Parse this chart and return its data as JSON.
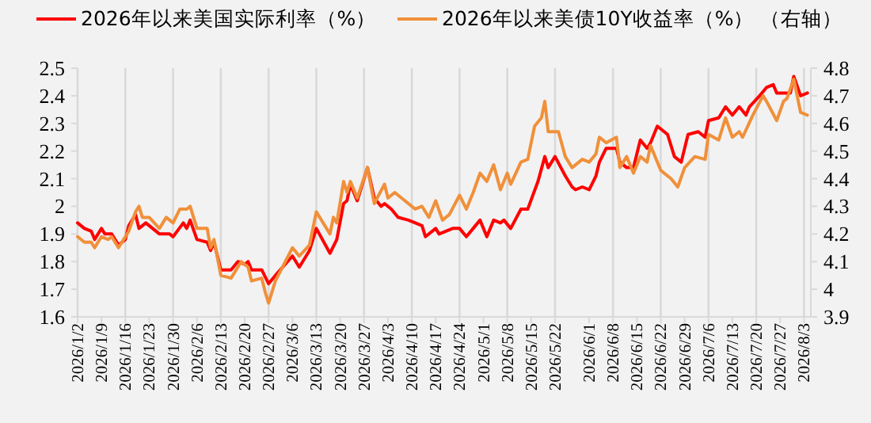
{
  "chart_data": {
    "type": "line",
    "y2label": "（右轴）",
    "legend": "top",
    "grid": "x",
    "line_style": "solid",
    "xlim": [
      "2026-01-02",
      "2026-08-05"
    ],
    "ylim": [
      1.6,
      2.5
    ],
    "yticks": [
      1.6,
      1.7,
      1.8,
      1.9,
      2,
      2.1,
      2.2,
      2.3,
      2.4,
      2.5
    ],
    "y2lim": [
      3.9,
      4.8
    ],
    "y2ticks": [
      3.9,
      4,
      4.1,
      4.2,
      4.3,
      4.4,
      4.5,
      4.6,
      4.7,
      4.8
    ],
    "xticks": [
      {
        "value": "2026-01-02",
        "label": "2026/1/2"
      },
      {
        "value": "2026-01-09",
        "label": "2026/1/9"
      },
      {
        "value": "2026-01-16",
        "label": "2026/1/16"
      },
      {
        "value": "2026-01-23",
        "label": "2026/1/23"
      },
      {
        "value": "2026-01-30",
        "label": "2026/1/30"
      },
      {
        "value": "2026-02-06",
        "label": "2026/2/6"
      },
      {
        "value": "2026-02-13",
        "label": "2026/2/13"
      },
      {
        "value": "2026-02-20",
        "label": "2026/2/20"
      },
      {
        "value": "2026-02-27",
        "label": "2026/2/27"
      },
      {
        "value": "2026-03-06",
        "label": "2026/3/6"
      },
      {
        "value": "2026-03-13",
        "label": "2026/3/13"
      },
      {
        "value": "2026-03-20",
        "label": "2026/3/20"
      },
      {
        "value": "2026-03-27",
        "label": "2026/3/27"
      },
      {
        "value": "2026-04-03",
        "label": "2026/4/3"
      },
      {
        "value": "2026-04-10",
        "label": "2026/4/10"
      },
      {
        "value": "2026-04-17",
        "label": "2026/4/17"
      },
      {
        "value": "2026-04-24",
        "label": "2026/4/24"
      },
      {
        "value": "2026-05-01",
        "label": "2026/5/1"
      },
      {
        "value": "2026-05-08",
        "label": "2026/5/8"
      },
      {
        "value": "2026-05-15",
        "label": "2026/5/15"
      },
      {
        "value": "2026-05-22",
        "label": "2026/5/22"
      },
      {
        "value": "2026-06-01",
        "label": "2026/6/1"
      },
      {
        "value": "2026-06-08",
        "label": "2026/6/8"
      },
      {
        "value": "2026-06-15",
        "label": "2026/6/15"
      },
      {
        "value": "2026-06-22",
        "label": "2026/6/22"
      },
      {
        "value": "2026-06-29",
        "label": "2026/6/29"
      },
      {
        "value": "2026-07-06",
        "label": "2026/7/6"
      },
      {
        "value": "2026-07-13",
        "label": "2026/7/13"
      },
      {
        "value": "2026-07-20",
        "label": "2026/7/20"
      },
      {
        "value": "2026-07-27",
        "label": "2026/7/27"
      },
      {
        "value": "2026-08-03",
        "label": "2026/8/3"
      }
    ],
    "series": [
      {
        "name": "2026年以来美国实际利率（%）",
        "color": "#ff0000",
        "x": [
          "2026-01-02",
          "2026-01-04",
          "2026-01-06",
          "2026-01-07",
          "2026-01-09",
          "2026-01-10",
          "2026-01-12",
          "2026-01-14",
          "2026-01-16",
          "2026-01-17",
          "2026-01-19",
          "2026-01-20",
          "2026-01-22",
          "2026-01-26",
          "2026-01-29",
          "2026-01-30",
          "2026-02-02",
          "2026-02-03",
          "2026-02-04",
          "2026-02-06",
          "2026-02-09",
          "2026-02-10",
          "2026-02-11",
          "2026-02-13",
          "2026-02-16",
          "2026-02-18",
          "2026-02-20",
          "2026-02-21",
          "2026-02-22",
          "2026-02-25",
          "2026-02-27",
          "2026-03-01",
          "2026-03-06",
          "2026-03-08",
          "2026-03-11",
          "2026-03-13",
          "2026-03-17",
          "2026-03-19",
          "2026-03-21",
          "2026-03-22",
          "2026-03-23",
          "2026-03-25",
          "2026-03-28",
          "2026-03-30",
          "2026-04-01",
          "2026-04-02",
          "2026-04-04",
          "2026-04-06",
          "2026-04-09",
          "2026-04-13",
          "2026-04-14",
          "2026-04-17",
          "2026-04-18",
          "2026-04-22",
          "2026-04-24",
          "2026-04-26",
          "2026-04-28",
          "2026-04-30",
          "2026-05-02",
          "2026-05-04",
          "2026-05-06",
          "2026-05-07",
          "2026-05-09",
          "2026-05-12",
          "2026-05-14",
          "2026-05-17",
          "2026-05-19",
          "2026-05-20",
          "2026-05-22",
          "2026-05-25",
          "2026-05-27",
          "2026-05-28",
          "2026-05-30",
          "2026-06-01",
          "2026-06-03",
          "2026-06-04",
          "2026-06-06",
          "2026-06-09",
          "2026-06-10",
          "2026-06-12",
          "2026-06-14",
          "2026-06-16",
          "2026-06-18",
          "2026-06-19",
          "2026-06-21",
          "2026-06-24",
          "2026-06-26",
          "2026-06-28",
          "2026-06-30",
          "2026-07-03",
          "2026-07-05",
          "2026-07-06",
          "2026-07-09",
          "2026-07-11",
          "2026-07-13",
          "2026-07-15",
          "2026-07-17",
          "2026-07-18",
          "2026-07-21",
          "2026-07-23",
          "2026-07-25",
          "2026-07-26",
          "2026-07-30",
          "2026-07-31",
          "2026-08-02",
          "2026-08-04"
        ],
        "values": [
          1.94,
          1.92,
          1.91,
          1.88,
          1.92,
          1.9,
          1.9,
          1.86,
          1.88,
          1.93,
          1.97,
          1.92,
          1.94,
          1.9,
          1.9,
          1.89,
          1.94,
          1.92,
          1.95,
          1.88,
          1.87,
          1.84,
          1.87,
          1.77,
          1.77,
          1.8,
          1.79,
          1.8,
          1.77,
          1.77,
          1.72,
          1.75,
          1.82,
          1.78,
          1.84,
          1.92,
          1.83,
          1.88,
          2.01,
          2.02,
          2.08,
          2.02,
          2.14,
          2.03,
          2.0,
          2.01,
          1.99,
          1.96,
          1.95,
          1.93,
          1.89,
          1.92,
          1.9,
          1.92,
          1.92,
          1.89,
          1.92,
          1.95,
          1.89,
          1.95,
          1.94,
          1.95,
          1.92,
          1.99,
          1.99,
          2.09,
          2.18,
          2.14,
          2.18,
          2.11,
          2.07,
          2.06,
          2.07,
          2.06,
          2.11,
          2.16,
          2.21,
          2.21,
          2.16,
          2.14,
          2.14,
          2.24,
          2.21,
          2.23,
          2.29,
          2.26,
          2.18,
          2.16,
          2.26,
          2.27,
          2.25,
          2.31,
          2.32,
          2.36,
          2.33,
          2.36,
          2.33,
          2.36,
          2.4,
          2.43,
          2.44,
          2.41,
          2.41,
          2.47,
          2.4,
          2.41
        ]
      },
      {
        "name": "2026年以来美债10Y收益率（%）",
        "color": "#f0903a",
        "axis": "y2",
        "x": [
          "2026-01-02",
          "2026-01-04",
          "2026-01-06",
          "2026-01-07",
          "2026-01-09",
          "2026-01-11",
          "2026-01-12",
          "2026-01-14",
          "2026-01-17",
          "2026-01-19",
          "2026-01-20",
          "2026-01-21",
          "2026-01-23",
          "2026-01-26",
          "2026-01-28",
          "2026-01-30",
          "2026-02-01",
          "2026-02-03",
          "2026-02-04",
          "2026-02-06",
          "2026-02-09",
          "2026-02-10",
          "2026-02-11",
          "2026-02-13",
          "2026-02-16",
          "2026-02-19",
          "2026-02-21",
          "2026-02-22",
          "2026-02-25",
          "2026-02-26",
          "2026-02-27",
          "2026-03-01",
          "2026-03-06",
          "2026-03-08",
          "2026-03-11",
          "2026-03-13",
          "2026-03-17",
          "2026-03-18",
          "2026-03-19",
          "2026-03-21",
          "2026-03-22",
          "2026-03-23",
          "2026-03-25",
          "2026-03-28",
          "2026-03-30",
          "2026-04-02",
          "2026-04-03",
          "2026-04-05",
          "2026-04-07",
          "2026-04-11",
          "2026-04-13",
          "2026-04-15",
          "2026-04-17",
          "2026-04-19",
          "2026-04-21",
          "2026-04-24",
          "2026-04-26",
          "2026-04-28",
          "2026-04-30",
          "2026-05-02",
          "2026-05-04",
          "2026-05-06",
          "2026-05-08",
          "2026-05-09",
          "2026-05-12",
          "2026-05-14",
          "2026-05-16",
          "2026-05-18",
          "2026-05-19",
          "2026-05-20",
          "2026-05-23",
          "2026-05-25",
          "2026-05-27",
          "2026-05-30",
          "2026-06-01",
          "2026-06-03",
          "2026-06-04",
          "2026-06-06",
          "2026-06-09",
          "2026-06-10",
          "2026-06-12",
          "2026-06-14",
          "2026-06-16",
          "2026-06-18",
          "2026-06-19",
          "2026-06-22",
          "2026-06-25",
          "2026-06-27",
          "2026-06-29",
          "2026-07-02",
          "2026-07-05",
          "2026-07-06",
          "2026-07-09",
          "2026-07-11",
          "2026-07-13",
          "2026-07-15",
          "2026-07-16",
          "2026-07-19",
          "2026-07-22",
          "2026-07-23",
          "2026-07-26",
          "2026-07-28",
          "2026-07-29",
          "2026-07-31",
          "2026-08-02",
          "2026-08-04"
        ],
        "values": [
          4.19,
          4.17,
          4.17,
          4.15,
          4.19,
          4.18,
          4.19,
          4.15,
          4.21,
          4.28,
          4.3,
          4.26,
          4.26,
          4.22,
          4.26,
          4.24,
          4.29,
          4.29,
          4.3,
          4.22,
          4.22,
          4.15,
          4.18,
          4.05,
          4.04,
          4.1,
          4.08,
          4.03,
          4.04,
          3.99,
          3.95,
          4.03,
          4.15,
          4.12,
          4.16,
          4.28,
          4.2,
          4.26,
          4.24,
          4.39,
          4.35,
          4.39,
          4.33,
          4.44,
          4.31,
          4.38,
          4.33,
          4.35,
          4.33,
          4.29,
          4.3,
          4.26,
          4.32,
          4.25,
          4.27,
          4.34,
          4.29,
          4.35,
          4.42,
          4.39,
          4.45,
          4.36,
          4.42,
          4.38,
          4.46,
          4.47,
          4.59,
          4.62,
          4.68,
          4.57,
          4.57,
          4.48,
          4.44,
          4.47,
          4.46,
          4.49,
          4.55,
          4.53,
          4.55,
          4.44,
          4.48,
          4.42,
          4.48,
          4.46,
          4.52,
          4.43,
          4.4,
          4.37,
          4.44,
          4.48,
          4.47,
          4.56,
          4.54,
          4.62,
          4.55,
          4.57,
          4.55,
          4.63,
          4.7,
          4.68,
          4.61,
          4.68,
          4.69,
          4.76,
          4.64,
          4.63
        ]
      }
    ]
  }
}
